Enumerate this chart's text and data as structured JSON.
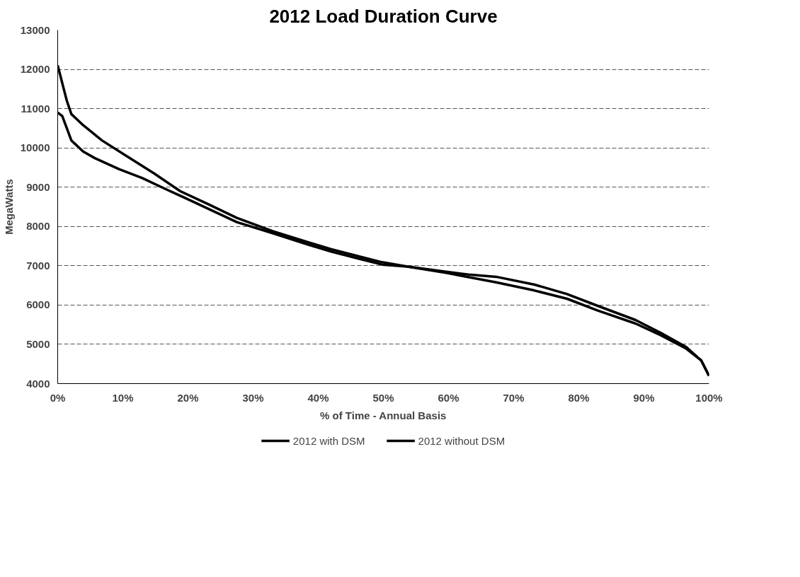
{
  "chart_data": {
    "type": "line",
    "title": "2012 Load Duration Curve",
    "xlabel": "% of Time - Annual Basis",
    "ylabel": "MegaWatts",
    "xlim": [
      0,
      100
    ],
    "ylim": [
      4000,
      13000
    ],
    "xticks": [
      {
        "value": 0,
        "label": "0%"
      },
      {
        "value": 10,
        "label": "10%"
      },
      {
        "value": 20,
        "label": "20%"
      },
      {
        "value": 30,
        "label": "30%"
      },
      {
        "value": 40,
        "label": "40%"
      },
      {
        "value": 50,
        "label": "50%"
      },
      {
        "value": 60,
        "label": "60%"
      },
      {
        "value": 70,
        "label": "70%"
      },
      {
        "value": 80,
        "label": "80%"
      },
      {
        "value": 90,
        "label": "90%"
      },
      {
        "value": 100,
        "label": "100%"
      }
    ],
    "yticks": [
      4000,
      5000,
      6000,
      7000,
      8000,
      9000,
      10000,
      11000,
      12000,
      13000
    ],
    "grid": "y",
    "legend": "bottom",
    "marker": "none",
    "line_style": "solid",
    "series": [
      {
        "name": "2012 with DSM",
        "color": "#000000",
        "x": [
          0,
          0.7,
          2.1,
          3.9,
          5.7,
          9.4,
          13,
          16.6,
          20.3,
          23.9,
          27.5,
          33,
          38.4,
          42,
          49.8,
          53.7,
          59.6,
          63.4,
          67.3,
          73.2,
          78.2,
          82.9,
          88.7,
          92.6,
          96.5,
          98.8,
          100
        ],
        "values": [
          10900,
          10810,
          10190,
          9910,
          9740,
          9460,
          9230,
          8950,
          8670,
          8390,
          8110,
          7830,
          7540,
          7360,
          7030,
          6980,
          6850,
          6770,
          6720,
          6520,
          6280,
          5980,
          5620,
          5290,
          4930,
          4590,
          4200
        ]
      },
      {
        "name": "2012 without DSM",
        "color": "#000000",
        "x": [
          0,
          0.7,
          1.4,
          2.1,
          3.9,
          6.8,
          10.5,
          14.8,
          18.8,
          23.2,
          27.5,
          33,
          38.4,
          42,
          49.8,
          53.7,
          59.6,
          63.4,
          67.3,
          73.2,
          78.2,
          82.9,
          88.7,
          92.6,
          96.5,
          98.8,
          100
        ],
        "values": [
          12100,
          11650,
          11200,
          10860,
          10580,
          10190,
          9800,
          9350,
          8900,
          8560,
          8220,
          7880,
          7600,
          7420,
          7090,
          6980,
          6820,
          6700,
          6580,
          6370,
          6160,
          5860,
          5530,
          5230,
          4890,
          4590,
          4200
        ]
      }
    ]
  }
}
